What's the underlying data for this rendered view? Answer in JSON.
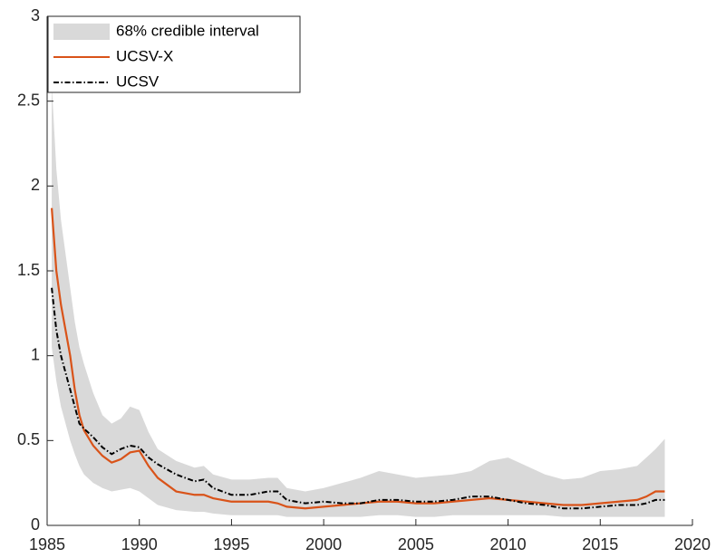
{
  "chart_data": {
    "type": "line",
    "x": [
      1985.25,
      1985.5,
      1985.75,
      1986,
      1986.25,
      1986.5,
      1986.75,
      1987,
      1987.5,
      1988,
      1988.5,
      1989,
      1989.5,
      1990,
      1990.5,
      1991,
      1992,
      1993,
      1993.5,
      1994,
      1995,
      1996,
      1997,
      1997.5,
      1998,
      1999,
      2000,
      2001,
      2002,
      2003,
      2004,
      2005,
      2006,
      2007,
      2008,
      2009,
      2010,
      2011,
      2012,
      2013,
      2014,
      2015,
      2016,
      2017,
      2017.5,
      2018,
      2018.5
    ],
    "series": [
      {
        "name": "68% credible interval",
        "color": "#d9d9d9",
        "upper": [
          2.6,
          2.1,
          1.8,
          1.6,
          1.4,
          1.2,
          1.05,
          0.95,
          0.78,
          0.65,
          0.6,
          0.63,
          0.7,
          0.68,
          0.55,
          0.45,
          0.38,
          0.34,
          0.35,
          0.3,
          0.27,
          0.27,
          0.28,
          0.28,
          0.22,
          0.2,
          0.22,
          0.25,
          0.28,
          0.32,
          0.3,
          0.28,
          0.29,
          0.3,
          0.32,
          0.38,
          0.4,
          0.35,
          0.3,
          0.27,
          0.28,
          0.32,
          0.33,
          0.35,
          0.4,
          0.45,
          0.51
        ],
        "lower": [
          1.05,
          0.85,
          0.7,
          0.6,
          0.5,
          0.42,
          0.35,
          0.3,
          0.25,
          0.22,
          0.2,
          0.21,
          0.22,
          0.2,
          0.16,
          0.12,
          0.09,
          0.08,
          0.08,
          0.07,
          0.06,
          0.06,
          0.06,
          0.06,
          0.05,
          0.05,
          0.05,
          0.05,
          0.05,
          0.06,
          0.06,
          0.05,
          0.05,
          0.06,
          0.06,
          0.06,
          0.06,
          0.06,
          0.06,
          0.05,
          0.05,
          0.05,
          0.05,
          0.05,
          0.05,
          0.05,
          0.05
        ]
      },
      {
        "name": "UCSV-X",
        "color": "#d95319",
        "values": [
          1.87,
          1.5,
          1.3,
          1.15,
          1.0,
          0.8,
          0.65,
          0.56,
          0.47,
          0.41,
          0.37,
          0.39,
          0.43,
          0.44,
          0.35,
          0.28,
          0.2,
          0.18,
          0.18,
          0.16,
          0.14,
          0.14,
          0.14,
          0.13,
          0.11,
          0.1,
          0.11,
          0.12,
          0.13,
          0.14,
          0.14,
          0.13,
          0.13,
          0.14,
          0.15,
          0.16,
          0.15,
          0.14,
          0.13,
          0.12,
          0.12,
          0.13,
          0.14,
          0.15,
          0.17,
          0.2,
          0.2
        ]
      },
      {
        "name": "UCSV",
        "color": "#000000",
        "dashed": true,
        "values": [
          1.4,
          1.15,
          1.0,
          0.9,
          0.8,
          0.7,
          0.6,
          0.57,
          0.52,
          0.46,
          0.42,
          0.45,
          0.47,
          0.46,
          0.4,
          0.36,
          0.3,
          0.26,
          0.27,
          0.22,
          0.18,
          0.18,
          0.2,
          0.2,
          0.15,
          0.13,
          0.14,
          0.13,
          0.13,
          0.15,
          0.15,
          0.14,
          0.14,
          0.15,
          0.17,
          0.17,
          0.15,
          0.13,
          0.12,
          0.1,
          0.1,
          0.11,
          0.12,
          0.12,
          0.13,
          0.15,
          0.15
        ]
      }
    ],
    "xlim": [
      1985,
      2020
    ],
    "xticks": [
      1985,
      1990,
      1995,
      2000,
      2005,
      2010,
      2015,
      2020
    ],
    "ylim": [
      0,
      3
    ],
    "yticks": [
      0,
      0.5,
      1,
      1.5,
      2,
      2.5,
      3
    ],
    "legend": "upper-left"
  }
}
